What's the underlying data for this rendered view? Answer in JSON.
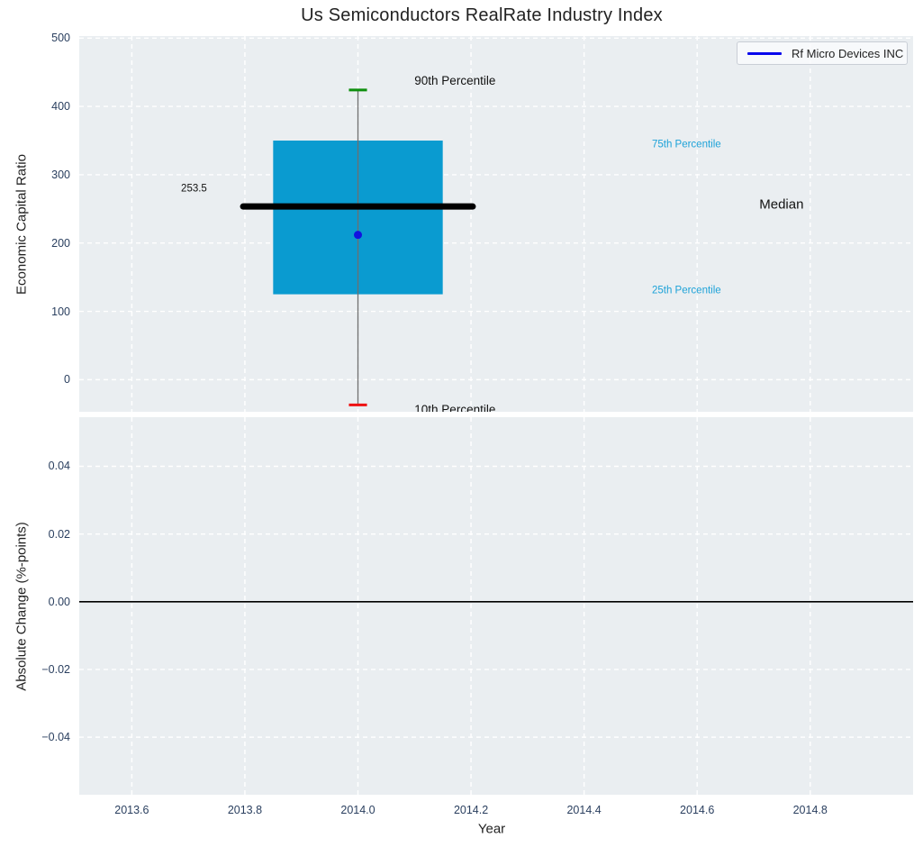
{
  "style": {
    "plot_bg": "#eaeef1",
    "grid_color": "#ffffff",
    "tick_color": "#2a3f5f",
    "text_color": "#222222"
  },
  "legend": {
    "label": "Rf Micro Devices INC",
    "line_color": "#0808ec"
  },
  "chart_data": [
    {
      "type": "boxplot",
      "title": "Us Semiconductors RealRate Industry Index",
      "ylabel": "Economic Capital Ratio",
      "ylim": [
        -47,
        503
      ],
      "yticks": [
        0,
        100,
        200,
        300,
        400,
        500
      ],
      "ytick_labels": [
        "0",
        "100",
        "200",
        "300",
        "400",
        "500"
      ],
      "grid": true,
      "legend_position": "top-right",
      "box": {
        "x": 2014.0,
        "p10": -37,
        "p25": 125,
        "median": 253.5,
        "p75": 350,
        "p90": 424,
        "box_halfwidth": 0.15,
        "median_halfwidth": 0.203,
        "cap_halfwidth": 0.016,
        "colors": {
          "box": "#0a9bd0",
          "median": "#000000",
          "p90_cap": "#0e8f0e",
          "p10_cap": "#ee1111",
          "whisker": "#6f6f6f"
        }
      },
      "company_point": {
        "label": "Rf Micro Devices INC",
        "x": 2014.0,
        "value": 212,
        "color": "#1212e0",
        "radius": 4.5
      },
      "median_value_label": {
        "text": "253.5",
        "x": 2013.71,
        "y": 279,
        "size": 11.5,
        "color": "#111111"
      },
      "annotations": [
        {
          "text": "90th Percentile",
          "x": 2014.1,
          "y": 437,
          "color": "#111111",
          "size": 13.5
        },
        {
          "text": "75th Percentile",
          "x": 2014.52,
          "y": 344,
          "color": "#1da2d8",
          "size": 11.5
        },
        {
          "text": "Median",
          "x": 2014.71,
          "y": 256,
          "color": "#111111",
          "size": 15
        },
        {
          "text": "25th Percentile",
          "x": 2014.52,
          "y": 130,
          "color": "#1da2d8",
          "size": 11.5
        },
        {
          "text": "10th Percentile",
          "x": 2014.1,
          "y": -44,
          "color": "#111111",
          "size": 13.5
        }
      ]
    },
    {
      "type": "line",
      "ylabel": "Absolute Change (%-points)",
      "xlabel": "Year",
      "ylim": [
        -0.057,
        0.0545
      ],
      "yticks": [
        0.04,
        0.02,
        0,
        -0.02,
        -0.04
      ],
      "ytick_labels": [
        "0.04",
        "0.02",
        "0.00",
        "−0.02",
        "−0.04"
      ],
      "xlim": [
        2013.507,
        2014.982
      ],
      "xticks": [
        2013.6,
        2013.8,
        2014.0,
        2014.2,
        2014.4,
        2014.6,
        2014.8
      ],
      "xtick_labels": [
        "2013.6",
        "2013.8",
        "2014.0",
        "2014.2",
        "2014.4",
        "2014.6",
        "2014.8"
      ],
      "zero_line": 0,
      "series": [],
      "grid": true
    }
  ]
}
